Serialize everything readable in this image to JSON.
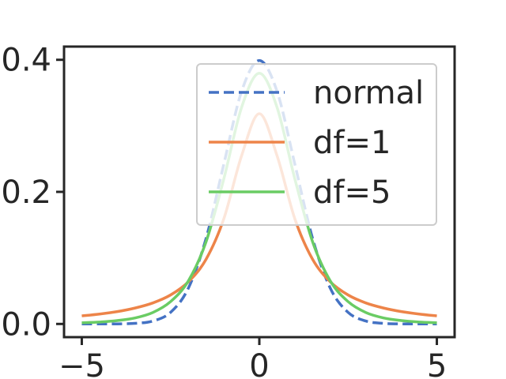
{
  "chart_data": {
    "type": "line",
    "title": "",
    "xlabel": "",
    "ylabel": "",
    "xlim": [
      -5.5,
      5.5
    ],
    "ylim": [
      -0.02,
      0.42
    ],
    "grid": false,
    "legend_position": "upper-right",
    "x_ticks": [
      -5,
      0,
      5
    ],
    "x_tick_labels": [
      "−5",
      "0",
      "5"
    ],
    "y_ticks": [
      0.0,
      0.2,
      0.4
    ],
    "y_tick_labels": [
      "0.0",
      "0.2",
      "0.4"
    ],
    "x": [
      -5.0,
      -4.5,
      -4.0,
      -3.5,
      -3.0,
      -2.5,
      -2.0,
      -1.5,
      -1.0,
      -0.5,
      0.0,
      0.5,
      1.0,
      1.5,
      2.0,
      2.5,
      3.0,
      3.5,
      4.0,
      4.5,
      5.0
    ],
    "series": [
      {
        "name": "normal",
        "color": "#4472c4",
        "dash": "dashed",
        "values": [
          0.0,
          0.0,
          0.0001,
          0.0009,
          0.0044,
          0.0175,
          0.054,
          0.1295,
          0.242,
          0.3521,
          0.3989,
          0.3521,
          0.242,
          0.1295,
          0.054,
          0.0175,
          0.0044,
          0.0009,
          0.0001,
          0.0,
          0.0
        ]
      },
      {
        "name": "df=1",
        "color": "#ed8449",
        "dash": "solid",
        "values": [
          0.0122,
          0.015,
          0.0187,
          0.0241,
          0.0318,
          0.0439,
          0.0637,
          0.0979,
          0.1592,
          0.2546,
          0.3183,
          0.2546,
          0.1592,
          0.0979,
          0.0637,
          0.0439,
          0.0318,
          0.0241,
          0.0187,
          0.015,
          0.0122
        ]
      },
      {
        "name": "df=5",
        "color": "#6acc64",
        "dash": "solid",
        "values": [
          0.0018,
          0.0029,
          0.0051,
          0.0091,
          0.0173,
          0.0338,
          0.0651,
          0.1245,
          0.2197,
          0.3279,
          0.3796,
          0.3279,
          0.2197,
          0.1245,
          0.0651,
          0.0338,
          0.0173,
          0.0091,
          0.0051,
          0.0029,
          0.0018
        ]
      }
    ]
  }
}
